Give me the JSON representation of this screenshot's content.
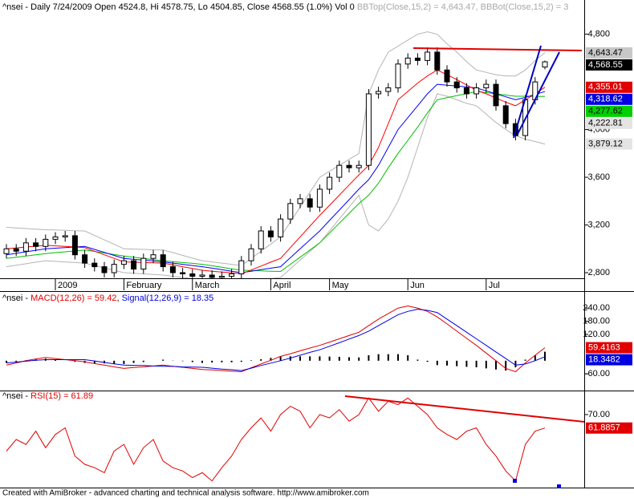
{
  "chart_data": [
    {
      "type": "candlestick",
      "title": "^nsei - Daily 7/24/2009 Open 4524.8, Hi 4578.75, Lo 4504.85, Close 4568.55 (1.0%) Vol 0",
      "categories": [
        null,
        null,
        null,
        null,
        null,
        "2009",
        null,
        null,
        null,
        null,
        null,
        null,
        "February",
        null,
        null,
        null,
        null,
        null,
        null,
        "March",
        null,
        null,
        null,
        null,
        null,
        null,
        null,
        "April",
        null,
        null,
        null,
        null,
        null,
        "May",
        null,
        null,
        null,
        null,
        null,
        null,
        null,
        "Jun",
        null,
        null,
        null,
        null,
        null,
        null,
        null,
        "Jul",
        null,
        null,
        null,
        null,
        null,
        null
      ],
      "open": [
        2960,
        3000,
        2980,
        3050,
        3020,
        3080,
        3100,
        3110,
        2950,
        2880,
        2850,
        2800,
        2870,
        2900,
        2830,
        2920,
        2950,
        2850,
        2800,
        2790,
        2770,
        2780,
        2760,
        2770,
        2790,
        2900,
        3000,
        3150,
        3100,
        3250,
        3380,
        3420,
        3350,
        3500,
        3600,
        3700,
        3680,
        3700,
        4300,
        4320,
        4350,
        4550,
        4600,
        4580,
        4650,
        4500,
        4400,
        4350,
        4300,
        4350,
        4380,
        4200,
        4050,
        3950,
        4250,
        4524.8
      ],
      "high": [
        3040,
        3040,
        3090,
        3090,
        3120,
        3140,
        3150,
        3150,
        2990,
        2920,
        2890,
        2910,
        2940,
        2940,
        2960,
        2990,
        2990,
        2890,
        2840,
        2830,
        2820,
        2820,
        2810,
        2830,
        2940,
        3040,
        3190,
        3190,
        3290,
        3420,
        3460,
        3460,
        3540,
        3640,
        3740,
        3740,
        3740,
        4340,
        4360,
        4390,
        4590,
        4640,
        4640,
        4690,
        4690,
        4540,
        4440,
        4390,
        4390,
        4420,
        4420,
        4240,
        4090,
        4290,
        4440,
        4578.75
      ],
      "low": [
        2920,
        2940,
        2940,
        2980,
        2980,
        3040,
        3060,
        2910,
        2840,
        2810,
        2760,
        2760,
        2830,
        2790,
        2790,
        2880,
        2810,
        2760,
        2750,
        2730,
        2730,
        2720,
        2720,
        2730,
        2750,
        2860,
        2960,
        3060,
        3060,
        3210,
        3340,
        3310,
        3310,
        3460,
        3560,
        3640,
        3640,
        3660,
        4260,
        4280,
        4310,
        4510,
        4540,
        4540,
        4460,
        4360,
        4310,
        4260,
        4260,
        4310,
        4160,
        4010,
        3910,
        3910,
        4210,
        4504.85
      ],
      "close": [
        3000,
        2980,
        3050,
        3020,
        3080,
        3100,
        3110,
        2950,
        2880,
        2850,
        2800,
        2870,
        2900,
        2830,
        2920,
        2950,
        2850,
        2800,
        2790,
        2770,
        2780,
        2760,
        2770,
        2790,
        2900,
        3000,
        3150,
        3100,
        3250,
        3380,
        3420,
        3350,
        3500,
        3600,
        3700,
        3680,
        3700,
        4300,
        4320,
        4350,
        4550,
        4600,
        4580,
        4650,
        4500,
        4400,
        4350,
        4300,
        4350,
        4380,
        4200,
        4050,
        3950,
        4250,
        4400,
        4568.55
      ],
      "up_color": "#ffffff",
      "down_color": "#000000",
      "series": [
        {
          "name": "BBTop(Close,15,2) = 4,643.47,",
          "color": "#b4b4b4",
          "values": [
            3180,
            3175,
            3170,
            3165,
            3160,
            3158,
            3155,
            3152,
            3150,
            3112,
            3075,
            3038,
            3000,
            2998,
            2995,
            2992,
            2990,
            2968,
            2945,
            2922,
            2900,
            2890,
            2880,
            2870,
            2860,
            2920,
            2980,
            3040,
            3100,
            3225,
            3350,
            3475,
            3600,
            3650,
            3700,
            3750,
            3800,
            4300,
            4500,
            4650,
            4700,
            4750,
            4800,
            4820,
            4800,
            4720,
            4650,
            4570,
            4500,
            4480,
            4460,
            4450,
            4450,
            4500,
            4580,
            4643.47
          ]
        },
        {
          "name": "BBBot(Close,15,2) = 3",
          "color": "#b4b4b4",
          "values": [
            2850,
            2862,
            2875,
            2888,
            2900,
            2895,
            2890,
            2885,
            2880,
            2860,
            2840,
            2820,
            2800,
            2795,
            2790,
            2785,
            2780,
            2770,
            2760,
            2750,
            2740,
            2735,
            2730,
            2725,
            2720,
            2730,
            2740,
            2750,
            2760,
            2832,
            2905,
            2978,
            3050,
            3150,
            3250,
            3350,
            3450,
            3200,
            3150,
            3250,
            3400,
            3600,
            3850,
            4100,
            4300,
            4280,
            4250,
            4220,
            4200,
            4130,
            4060,
            4000,
            3950,
            3920,
            3900,
            3879.12
          ]
        },
        {
          "color": "#00c000",
          "values": [
            2920,
            2930,
            2940,
            2950,
            2960,
            2968,
            2975,
            2982,
            2990,
            2978,
            2965,
            2952,
            2940,
            2930,
            2920,
            2910,
            2900,
            2892,
            2885,
            2878,
            2870,
            2858,
            2845,
            2832,
            2820,
            2818,
            2815,
            2812,
            2810,
            2870,
            2930,
            2990,
            3050,
            3132,
            3215,
            3298,
            3380,
            3450,
            3550,
            3680,
            3800,
            3910,
            4020,
            4140,
            4250,
            4268,
            4285,
            4302,
            4320,
            4310,
            4300,
            4290,
            4280,
            4280,
            4279,
            4277.62
          ]
        },
        {
          "color": "#0000ff",
          "values": [
            2950,
            2962,
            2975,
            2988,
            3000,
            3005,
            3010,
            3015,
            3020,
            2995,
            2970,
            2945,
            2920,
            2912,
            2905,
            2898,
            2890,
            2880,
            2870,
            2860,
            2850,
            2838,
            2825,
            2812,
            2800,
            2812,
            2825,
            2838,
            2850,
            2925,
            3000,
            3075,
            3150,
            3238,
            3325,
            3412,
            3500,
            3580,
            3700,
            3850,
            4000,
            4100,
            4200,
            4300,
            4380,
            4372,
            4365,
            4358,
            4350,
            4325,
            4300,
            4275,
            4250,
            4270,
            4295,
            4318.62
          ]
        },
        {
          "color": "#ff0000",
          "values": [
            3000,
            3008,
            3015,
            3022,
            3030,
            3025,
            3020,
            3015,
            3010,
            2980,
            2950,
            2920,
            2890,
            2888,
            2885,
            2882,
            2880,
            2865,
            2850,
            2835,
            2820,
            2812,
            2805,
            2798,
            2790,
            2822,
            2855,
            2888,
            2920,
            3010,
            3100,
            3190,
            3280,
            3365,
            3450,
            3535,
            3620,
            3700,
            3850,
            4050,
            4250,
            4320,
            4390,
            4450,
            4500,
            4460,
            4420,
            4375,
            4330,
            4300,
            4265,
            4230,
            4200,
            4250,
            4300,
            4355.01
          ]
        }
      ],
      "tags": [
        {
          "value": 4643.47,
          "label": "4,643.47",
          "color": "#c8c8c8",
          "text_color": "#000000"
        },
        {
          "value": 4568.55,
          "label": "4,568.55",
          "color": "#000000",
          "text_color": "#ffffff"
        },
        {
          "value": 4355.01,
          "label": "4,355.01",
          "color": "#e00000",
          "text_color": "#ffffff"
        },
        {
          "value": 4318.62,
          "label": "4,318.62",
          "color": "#0000e0",
          "text_color": "#ffffff"
        },
        {
          "value": 4277.62,
          "label": "4,277.62",
          "color": "#00d000",
          "text_color": "#000000"
        },
        {
          "value": 4222.81,
          "label": "4,222.81",
          "color": "#e4e4e4",
          "text_color": "#000000"
        },
        {
          "value": 3879.12,
          "label": "3,879.12",
          "color": "#e4e4e4",
          "text_color": "#000000"
        }
      ],
      "ylim": [
        2753,
        5087
      ],
      "yticks": [
        {
          "value": 2800,
          "label": "2,800"
        },
        {
          "value": 3200,
          "label": "3,200"
        },
        {
          "value": 3600,
          "label": "3,600"
        },
        {
          "value": 4000,
          "label": "4,000"
        },
        {
          "value": 4800,
          "label": "4,800"
        }
      ]
    },
    {
      "type": "line",
      "title": "^nsei - ",
      "separator": ", ",
      "series": [
        {
          "name": "MACD(12,26) = 59.42",
          "color": "#e00000",
          "values": [
            -20,
            -10,
            0,
            8,
            15,
            10,
            5,
            0,
            -5,
            -13,
            -20,
            -28,
            -35,
            -31,
            -28,
            -24,
            -20,
            -25,
            -30,
            -35,
            -40,
            -42,
            -45,
            -48,
            -50,
            -32,
            -15,
            2,
            20,
            32,
            45,
            58,
            70,
            85,
            100,
            115,
            130,
            160,
            190,
            215,
            240,
            250,
            240,
            225,
            200,
            168,
            135,
            102,
            70,
            35,
            0,
            -35,
            -50,
            -10,
            25,
            59.42
          ]
        },
        {
          "name": "Signal(12,26,9) = 18.35",
          "color": "#0000e0",
          "values": [
            -10,
            -6,
            -2,
            2,
            5,
            5,
            5,
            5,
            5,
            -1,
            -8,
            -14,
            -20,
            -21,
            -22,
            -24,
            -25,
            -26,
            -28,
            -29,
            -30,
            -34,
            -38,
            -41,
            -45,
            -34,
            -22,
            -11,
            0,
            12,
            25,
            38,
            50,
            66,
            82,
            99,
            115,
            135,
            160,
            185,
            210,
            225,
            235,
            230,
            220,
            190,
            160,
            130,
            100,
            70,
            40,
            10,
            -20,
            -15,
            0,
            18.35
          ]
        }
      ],
      "histogram": {
        "color": "#000000",
        "values": [
          -10,
          -4,
          2,
          6,
          10,
          5,
          0,
          -5,
          -10,
          -12,
          -12,
          -14,
          -15,
          -10,
          -6,
          0,
          5,
          1,
          -2,
          -6,
          -10,
          -8,
          -7,
          -7,
          -5,
          2,
          7,
          13,
          20,
          20,
          20,
          20,
          20,
          19,
          18,
          16,
          15,
          25,
          30,
          30,
          30,
          25,
          5,
          -5,
          -20,
          -22,
          -25,
          -28,
          -30,
          -35,
          -40,
          -45,
          -30,
          5,
          25,
          41.07
        ]
      },
      "tags": [
        {
          "value": 59.4163,
          "label": "59.4163",
          "color": "#e00000",
          "text_color": "#ffffff"
        },
        {
          "value": 18.3482,
          "label": "18.3482",
          "color": "#0000e0",
          "text_color": "#ffffff"
        }
      ],
      "ylim": [
        -136,
        314
      ],
      "yticks": [
        {
          "value": 240,
          "label": "240.00"
        },
        {
          "value": 180,
          "label": "180.00"
        },
        {
          "value": 120,
          "label": "120.00"
        },
        {
          "value": -60,
          "label": "-60.00"
        }
      ]
    },
    {
      "type": "line",
      "title": "^nsei - ",
      "series": [
        {
          "name": "RSI(15) = 61.89",
          "color": "#e00000",
          "values": [
            48,
            55,
            52,
            60,
            50,
            58,
            62,
            45,
            40,
            38,
            35,
            48,
            52,
            40,
            50,
            55,
            42,
            38,
            36,
            32,
            35,
            30,
            38,
            45,
            55,
            62,
            68,
            60,
            70,
            75,
            72,
            62,
            70,
            68,
            73,
            66,
            70,
            80,
            72,
            78,
            76,
            80,
            75,
            70,
            62,
            58,
            55,
            60,
            62,
            52,
            45,
            36,
            30,
            52,
            60,
            61.89
          ]
        }
      ],
      "tags": [
        {
          "value": 61.8857,
          "label": "61.8857",
          "color": "#e00000",
          "text_color": "#ffffff"
        }
      ],
      "ylim": [
        26,
        84
      ],
      "yticks": [
        {
          "value": 70,
          "label": "70.00"
        }
      ]
    }
  ],
  "footer": "Created with AmiBroker - advanced charting and technical analysis software. http://www.amibroker.com"
}
